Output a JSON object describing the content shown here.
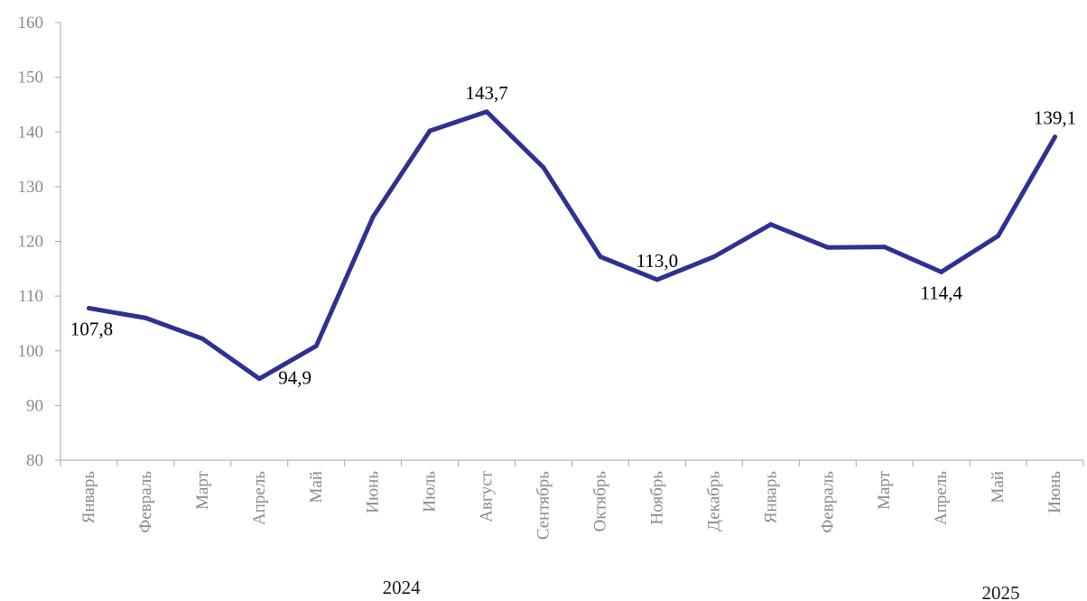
{
  "chart_data": {
    "type": "line",
    "title": "",
    "xlabel": "",
    "ylabel": "",
    "ylim": [
      80,
      160
    ],
    "yticks": [
      80,
      90,
      100,
      110,
      120,
      130,
      140,
      150,
      160
    ],
    "ytick_labels": [
      "80",
      "90",
      "100",
      "110",
      "120",
      "130",
      "140",
      "150",
      "160"
    ],
    "grid": false,
    "legend": "none",
    "categories": [
      "Январь",
      "Февраль",
      "Март",
      "Апрель",
      "Май",
      "Июнь",
      "Июль",
      "Август",
      "Сентябрь",
      "Октябрь",
      "Ноябрь",
      "Декабрь",
      "Январь",
      "Февраль",
      "Март",
      "Апрель",
      "Май",
      "Июнь"
    ],
    "year_groups": [
      {
        "label": "2024",
        "start": 0,
        "end": 11
      },
      {
        "label": "2025",
        "start": 12,
        "end": 17
      }
    ],
    "series": [
      {
        "values": [
          107.8,
          106.0,
          102.2,
          94.9,
          100.9,
          124.5,
          140.2,
          143.7,
          133.5,
          117.2,
          113.0,
          117.2,
          123.1,
          118.9,
          119.0,
          114.4,
          121.0,
          139.1
        ],
        "color": "#2e3192"
      }
    ],
    "data_labels": [
      {
        "index": 0,
        "text": "107,8",
        "position": "below"
      },
      {
        "index": 3,
        "text": "94,9",
        "position": "below-right"
      },
      {
        "index": 7,
        "text": "143,7",
        "position": "above"
      },
      {
        "index": 10,
        "text": "113,0",
        "position": "above"
      },
      {
        "index": 15,
        "text": "114,4",
        "position": "below"
      },
      {
        "index": 17,
        "text": "139,1",
        "position": "above"
      }
    ],
    "axis_color": "#a6a6a6"
  }
}
